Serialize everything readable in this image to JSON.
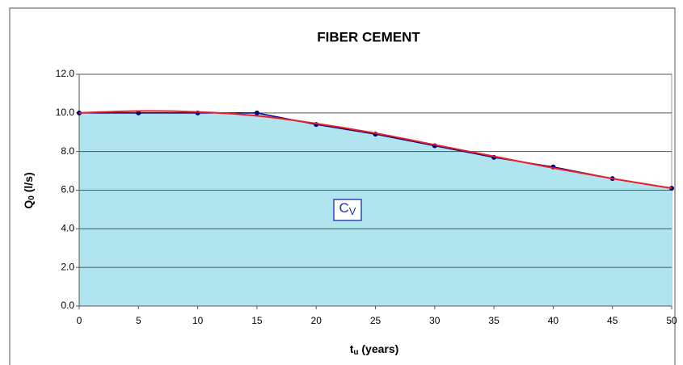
{
  "chart_data": {
    "type": "line",
    "title": "FIBER CEMENT",
    "xlabel_parts": [
      "t",
      "u",
      " (years)"
    ],
    "ylabel_parts": [
      "Q",
      "0",
      " (l/s)"
    ],
    "annotation_parts": [
      "C",
      "V"
    ],
    "x": [
      0,
      5,
      10,
      15,
      20,
      25,
      30,
      35,
      40,
      45,
      50
    ],
    "series": [
      {
        "color": "#000080",
        "fill": "#b0e5ef",
        "values": [
          10.0,
          10.0,
          10.0,
          10.0,
          9.4,
          8.9,
          8.3,
          7.7,
          7.2,
          6.6,
          6.1
        ]
      },
      {
        "color": "#e8202a",
        "smooth": true,
        "values": [
          10.0,
          10.1,
          10.05,
          9.85,
          9.45,
          8.95,
          8.35,
          7.75,
          7.15,
          6.6,
          6.1
        ]
      }
    ],
    "xlim": [
      0,
      50
    ],
    "xticks": [
      0,
      5,
      10,
      15,
      20,
      25,
      30,
      35,
      40,
      45,
      50
    ],
    "ylim": [
      0,
      12
    ],
    "yticks": [
      {
        "value": 0,
        "label": "0.0"
      },
      {
        "value": 2,
        "label": "2.0"
      },
      {
        "value": 4,
        "label": "4.0"
      },
      {
        "value": 6,
        "label": "6.0"
      },
      {
        "value": 8,
        "label": "8.0"
      },
      {
        "value": 10,
        "label": "10.0"
      },
      {
        "value": 12,
        "label": "12.0"
      }
    ],
    "grid": true
  }
}
